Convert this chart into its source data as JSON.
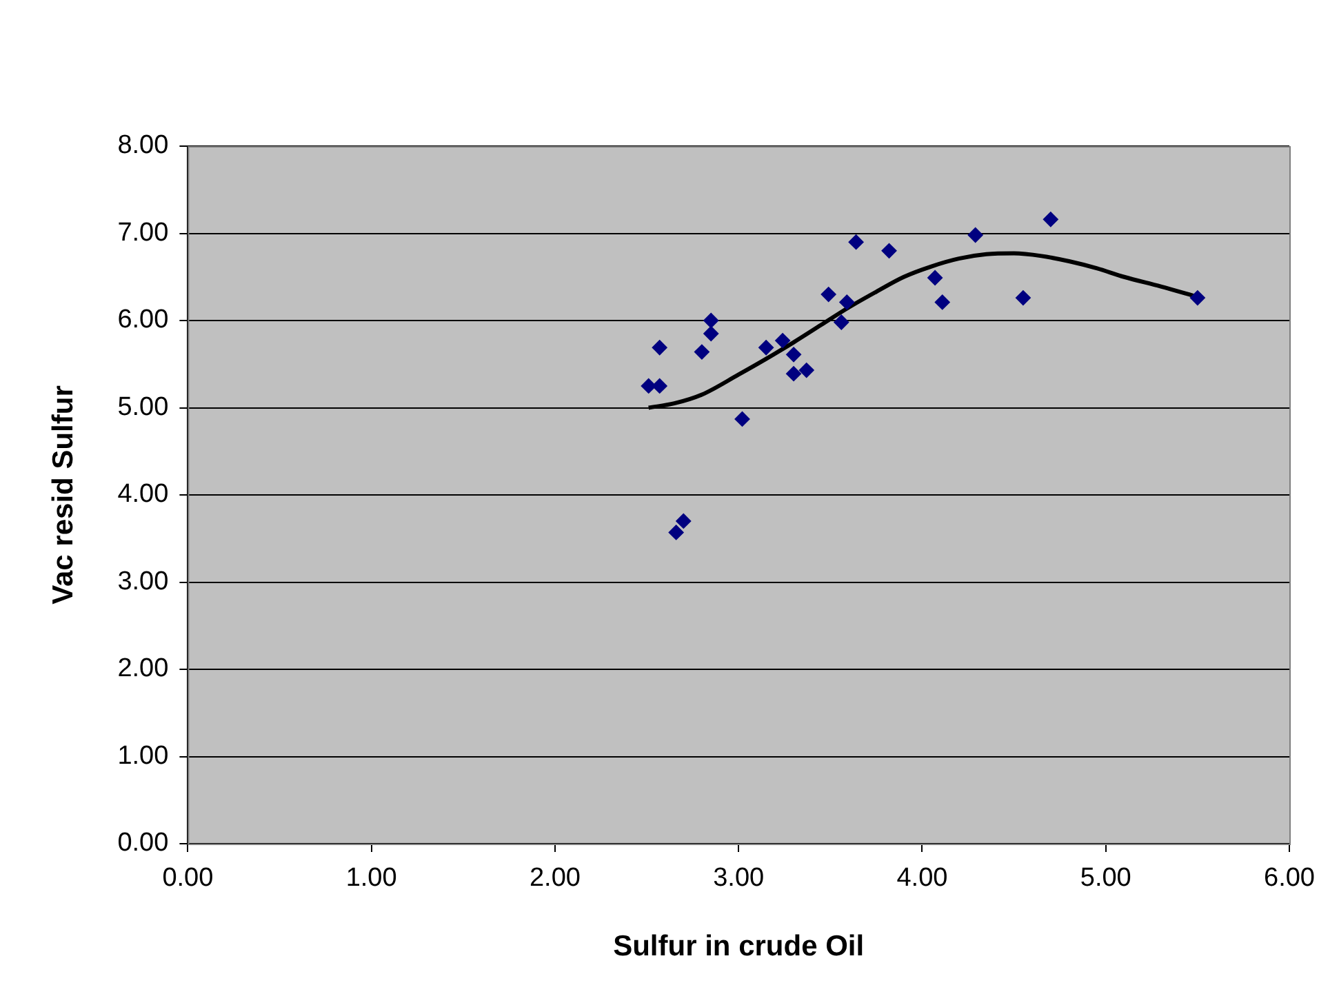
{
  "chart_data": {
    "type": "scatter",
    "xlabel": "Sulfur in crude Oil",
    "ylabel": "Vac resid Sulfur",
    "xlim": [
      0,
      6
    ],
    "ylim": [
      0,
      8
    ],
    "xticks": [
      {
        "value": 0,
        "label": "0.00"
      },
      {
        "value": 1,
        "label": "1.00"
      },
      {
        "value": 2,
        "label": "2.00"
      },
      {
        "value": 3,
        "label": "3.00"
      },
      {
        "value": 4,
        "label": "4.00"
      },
      {
        "value": 5,
        "label": "5.00"
      },
      {
        "value": 6,
        "label": "6.00"
      }
    ],
    "yticks": [
      {
        "value": 0,
        "label": "0.00"
      },
      {
        "value": 1,
        "label": "1.00"
      },
      {
        "value": 2,
        "label": "2.00"
      },
      {
        "value": 3,
        "label": "3.00"
      },
      {
        "value": 4,
        "label": "4.00"
      },
      {
        "value": 5,
        "label": "5.00"
      },
      {
        "value": 6,
        "label": "6.00"
      },
      {
        "value": 7,
        "label": "7.00"
      },
      {
        "value": 8,
        "label": "8.00"
      }
    ],
    "grid": "y",
    "legend": false,
    "marker": "diamond",
    "series": [
      {
        "color": "#000080",
        "x": [
          2.51,
          2.57,
          2.57,
          2.66,
          2.7,
          2.8,
          2.85,
          2.85,
          3.02,
          3.15,
          3.24,
          3.3,
          3.3,
          3.37,
          3.49,
          3.56,
          3.59,
          3.64,
          3.82,
          4.07,
          4.11,
          4.29,
          4.55,
          4.7,
          5.5
        ],
        "values": [
          5.25,
          5.25,
          5.69,
          3.57,
          3.7,
          5.64,
          6.0,
          5.85,
          4.87,
          5.69,
          5.77,
          5.61,
          5.39,
          5.43,
          6.3,
          5.98,
          6.21,
          6.9,
          6.8,
          6.49,
          6.21,
          6.98,
          6.26,
          7.16,
          6.26
        ]
      },
      {
        "type": "line",
        "color": "#000000",
        "marker": "none",
        "line_style": "solid",
        "x": [
          2.51,
          2.65,
          2.8,
          3.0,
          3.15,
          3.3,
          3.45,
          3.6,
          3.75,
          3.9,
          4.05,
          4.2,
          4.35,
          4.5,
          4.65,
          4.8,
          4.95,
          5.1,
          5.3,
          5.5
        ],
        "values": [
          5.0,
          5.05,
          5.15,
          5.38,
          5.56,
          5.75,
          5.95,
          6.15,
          6.33,
          6.5,
          6.62,
          6.71,
          6.76,
          6.77,
          6.74,
          6.68,
          6.6,
          6.5,
          6.39,
          6.27
        ]
      }
    ]
  }
}
